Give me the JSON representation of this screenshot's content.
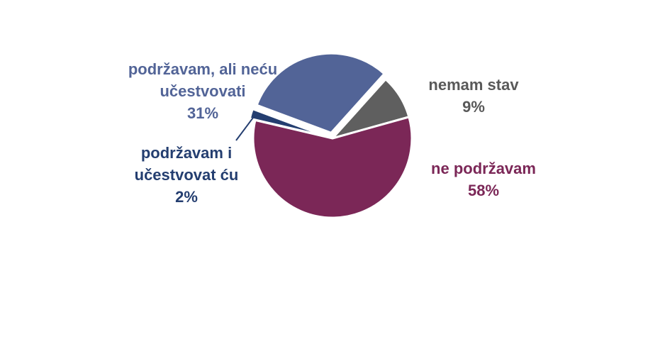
{
  "chart_data": {
    "type": "pie",
    "title": "",
    "slices": [
      {
        "label_lines": [
          "nemam stav"
        ],
        "value_label": "9%",
        "value": 9,
        "color": "#5F5F5F",
        "label_color": "#595959"
      },
      {
        "label_lines": [
          "ne podržavam"
        ],
        "value_label": "58%",
        "value": 58,
        "color": "#7B2757",
        "label_color": "#7B2757"
      },
      {
        "label_lines": [
          "podržavam i",
          "učestvovat ću"
        ],
        "value_label": "2%",
        "value": 2,
        "color": "#243E70",
        "label_color": "#243E70"
      },
      {
        "label_lines": [
          "podržavam, ali neću",
          "učestvovati"
        ],
        "value_label": "31%",
        "value": 31,
        "color": "#526497",
        "label_color": "#526497"
      }
    ],
    "legend": "none",
    "data_labels": "outside"
  }
}
